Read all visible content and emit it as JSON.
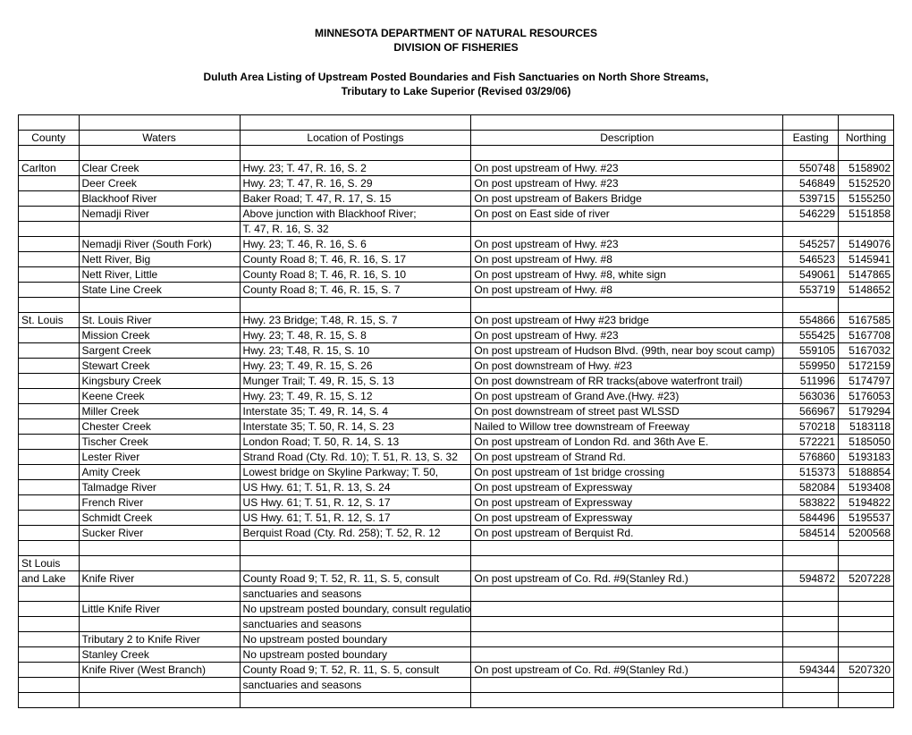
{
  "header": {
    "line1": "MINNESOTA DEPARTMENT OF NATURAL RESOURCES",
    "line2": "DIVISION OF FISHERIES"
  },
  "subtitle": {
    "line1": "Duluth Area Listing of Upstream Posted Boundaries and Fish Sanctuaries on North Shore Streams,",
    "line2": "Tributary to Lake Superior (Revised 03/29/06)"
  },
  "table": {
    "columns": [
      "County",
      "Waters",
      "Location of Postings",
      "Description",
      "Easting",
      "Northing"
    ],
    "rows": [
      {
        "county": "",
        "waters": "",
        "location": "",
        "description": "",
        "easting": "",
        "northing": ""
      },
      {
        "county": "Carlton",
        "waters": "Clear Creek",
        "location": "Hwy. 23; T. 47, R. 16, S. 2",
        "description": "On post upstream of Hwy. #23",
        "easting": "550748",
        "northing": "5158902"
      },
      {
        "county": "",
        "waters": "Deer Creek",
        "location": "Hwy. 23; T. 47, R. 16, S. 29",
        "description": "On post upstream of Hwy. #23",
        "easting": "546849",
        "northing": "5152520"
      },
      {
        "county": "",
        "waters": "Blackhoof River",
        "location": "Baker Road; T. 47, R. 17, S. 15",
        "description": "On post upstream of Bakers Bridge",
        "easting": "539715",
        "northing": "5155250"
      },
      {
        "county": "",
        "waters": "Nemadji River",
        "location": "Above junction with Blackhoof River;",
        "description": "On post on East side of river",
        "easting": "546229",
        "northing": "5151858"
      },
      {
        "county": "",
        "waters": "",
        "location": "T. 47, R. 16, S. 32",
        "description": "",
        "easting": "",
        "northing": ""
      },
      {
        "county": "",
        "waters": "Nemadji River (South Fork)",
        "location": "Hwy. 23; T. 46, R. 16, S. 6",
        "description": "On post upstream of Hwy. #23",
        "easting": "545257",
        "northing": "5149076"
      },
      {
        "county": "",
        "waters": "Nett River, Big",
        "location": "County Road 8; T. 46, R. 16, S. 17",
        "description": "On post upstream of Hwy. #8",
        "easting": "546523",
        "northing": "5145941"
      },
      {
        "county": "",
        "waters": "Nett River, Little",
        "location": "County Road 8; T. 46, R. 16, S. 10",
        "description": "On post upstream of Hwy. #8, white sign",
        "easting": "549061",
        "northing": "5147865"
      },
      {
        "county": "",
        "waters": "State Line Creek",
        "location": "County Road 8; T. 46, R. 15, S. 7",
        "description": "On post upstream of Hwy. #8",
        "easting": "553719",
        "northing": "5148652"
      },
      {
        "county": "",
        "waters": "",
        "location": "",
        "description": "",
        "easting": "",
        "northing": ""
      },
      {
        "county": "St. Louis",
        "waters": "St. Louis River",
        "location": "Hwy. 23 Bridge; T.48, R. 15, S. 7",
        "description": "On post upstream of Hwy #23 bridge",
        "easting": "554866",
        "northing": "5167585"
      },
      {
        "county": "",
        "waters": "Mission Creek",
        "location": "Hwy. 23; T. 48, R. 15, S. 8",
        "description": "On post upstream of Hwy. #23",
        "easting": "555425",
        "northing": "5167708"
      },
      {
        "county": "",
        "waters": "Sargent Creek",
        "location": "Hwy. 23; T.48, R. 15, S. 10",
        "description": "On post upstream of Hudson Blvd. (99th, near boy scout camp)",
        "easting": "559105",
        "northing": "5167032"
      },
      {
        "county": "",
        "waters": "Stewart Creek",
        "location": "Hwy. 23; T. 49, R. 15, S. 26",
        "description": "On post downstream of Hwy. #23",
        "easting": "559950",
        "northing": "5172159"
      },
      {
        "county": "",
        "waters": "Kingsbury Creek",
        "location": "Munger Trail; T. 49, R. 15, S. 13",
        "description": "On post downstream of RR tracks(above waterfront trail)",
        "easting": "511996",
        "northing": "5174797"
      },
      {
        "county": "",
        "waters": "Keene Creek",
        "location": "Hwy. 23; T. 49, R. 15, S. 12",
        "description": "On post upstream of Grand Ave.(Hwy. #23)",
        "easting": "563036",
        "northing": "5176053"
      },
      {
        "county": "",
        "waters": "Miller Creek",
        "location": "Interstate 35; T. 49, R. 14, S. 4",
        "description": "On post downstream of street past WLSSD",
        "easting": "566967",
        "northing": "5179294"
      },
      {
        "county": "",
        "waters": "Chester Creek",
        "location": "Interstate 35; T. 50, R. 14, S. 23",
        "description": "Nailed to Willow tree downstream of Freeway",
        "easting": "570218",
        "northing": "5183118"
      },
      {
        "county": "",
        "waters": "Tischer Creek",
        "location": "London Road; T. 50, R. 14, S. 13",
        "description": "On post upstream of London Rd. and 36th Ave E.",
        "easting": "572221",
        "northing": "5185050"
      },
      {
        "county": "",
        "waters": "Lester River",
        "location": "Strand Road (Cty. Rd. 10); T. 51, R. 13, S. 32",
        "description": "On post upstream of Strand Rd.",
        "easting": "576860",
        "northing": "5193183"
      },
      {
        "county": "",
        "waters": "Amity Creek",
        "location": "Lowest bridge on Skyline Parkway; T. 50,",
        "description": "On post upstream of 1st bridge crossing",
        "easting": "515373",
        "northing": "5188854"
      },
      {
        "county": "",
        "waters": "Talmadge River",
        "location": "US Hwy. 61; T. 51, R. 13, S. 24",
        "description": "On post upstream of Expressway",
        "easting": "582084",
        "northing": "5193408"
      },
      {
        "county": "",
        "waters": "French River",
        "location": "US Hwy. 61; T. 51, R. 12, S. 17",
        "description": "On post upstream of Expressway",
        "easting": "583822",
        "northing": "5194822"
      },
      {
        "county": "",
        "waters": "Schmidt Creek",
        "location": "US Hwy. 61; T. 51, R. 12, S. 17",
        "description": "On post upstream of Expressway",
        "easting": "584496",
        "northing": "5195537"
      },
      {
        "county": "",
        "waters": "Sucker River",
        "location": "Berquist Road (Cty. Rd. 258); T. 52, R. 12",
        "description": "On post upstream of Berquist Rd.",
        "easting": "584514",
        "northing": "5200568"
      },
      {
        "county": "",
        "waters": "",
        "location": "",
        "description": "",
        "easting": "",
        "northing": ""
      },
      {
        "county": "St Louis",
        "waters": "",
        "location": "",
        "description": "",
        "easting": "",
        "northing": ""
      },
      {
        "county": "and Lake",
        "waters": "Knife River",
        "location": "County Road 9; T. 52, R. 11, S. 5, consult",
        "description": "On post upstream of Co. Rd. #9(Stanley Rd.)",
        "easting": "594872",
        "northing": "5207228"
      },
      {
        "county": "",
        "waters": "",
        "location": "sanctuaries and seasons",
        "description": "",
        "easting": "",
        "northing": ""
      },
      {
        "county": "",
        "waters": "Little Knife River",
        "location": "No upstream posted boundary, consult regulations for",
        "description": "",
        "easting": "",
        "northing": ""
      },
      {
        "county": "",
        "waters": "",
        "location": "sanctuaries and seasons",
        "description": "",
        "easting": "",
        "northing": ""
      },
      {
        "county": "",
        "waters": "Tributary 2 to Knife River",
        "location": "No upstream posted boundary",
        "description": "",
        "easting": "",
        "northing": ""
      },
      {
        "county": "",
        "waters": "Stanley Creek",
        "location": "No upstream posted boundary",
        "description": "",
        "easting": "",
        "northing": ""
      },
      {
        "county": "",
        "waters": "Knife River (West Branch)",
        "location": "County Road 9; T. 52, R. 11, S. 5, consult",
        "description": "On post upstream of Co. Rd. #9(Stanley Rd.)",
        "easting": "594344",
        "northing": "5207320"
      },
      {
        "county": "",
        "waters": "",
        "location": "sanctuaries and seasons",
        "description": "",
        "easting": "",
        "northing": ""
      },
      {
        "county": "",
        "waters": "",
        "location": "",
        "description": "",
        "easting": "",
        "northing": ""
      }
    ]
  }
}
